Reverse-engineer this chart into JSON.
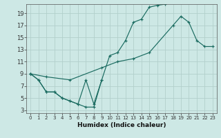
{
  "background_color": "#cde8e5",
  "grid_color": "#b2d0cb",
  "line_color": "#1a6b60",
  "xlim": [
    -0.5,
    23.5
  ],
  "ylim": [
    2.5,
    20.5
  ],
  "xticks": [
    0,
    1,
    2,
    3,
    4,
    5,
    6,
    7,
    8,
    9,
    10,
    11,
    12,
    13,
    14,
    15,
    16,
    17,
    18,
    19,
    20,
    21,
    22,
    23
  ],
  "yticks": [
    3,
    5,
    7,
    9,
    11,
    13,
    15,
    17,
    19
  ],
  "xlabel": "Humidex (Indice chaleur)",
  "series": [
    {
      "x": [
        0,
        1,
        2,
        3,
        4,
        5,
        6,
        7,
        8,
        9,
        10,
        11,
        12,
        13,
        14,
        15,
        16,
        17
      ],
      "y": [
        9,
        8,
        6,
        6,
        5,
        4.5,
        4,
        3.5,
        3.5,
        8,
        12,
        12.5,
        14.5,
        17.5,
        18,
        20,
        20.3,
        20.5
      ]
    },
    {
      "x": [
        0,
        1,
        2,
        3,
        4,
        5,
        6,
        7,
        8,
        9
      ],
      "y": [
        9,
        8,
        6,
        6,
        5,
        4.5,
        4,
        8,
        4,
        8
      ]
    },
    {
      "x": [
        0,
        2,
        5,
        9,
        11,
        13,
        15,
        18,
        19,
        20,
        21,
        22,
        23
      ],
      "y": [
        9,
        8.5,
        8,
        10,
        11,
        11.5,
        12.5,
        17,
        18.5,
        17.5,
        14.5,
        13.5,
        13.5
      ]
    }
  ],
  "figsize": [
    3.2,
    2.0
  ],
  "dpi": 100,
  "xlabel_fontsize": 6.5,
  "tick_fontsize_x": 5,
  "tick_fontsize_y": 6
}
